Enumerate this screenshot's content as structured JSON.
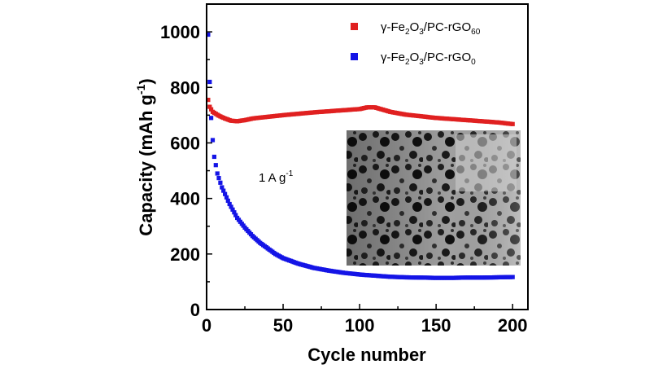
{
  "chart_data": {
    "type": "scatter",
    "xlabel": "Cycle number",
    "ylabel_main": "Capacity (mAh g",
    "ylabel_sup": "-1",
    "ylabel_tail": ")",
    "xlim": [
      0,
      210
    ],
    "ylim": [
      0,
      1100
    ],
    "xticks": [
      0,
      50,
      100,
      150,
      200
    ],
    "yticks": [
      0,
      200,
      400,
      600,
      800,
      1000
    ],
    "grid": false,
    "legend_position": "top-right",
    "annotation": {
      "main": "1 A g",
      "sup": "-1"
    },
    "inset": "TEM micrograph",
    "series": [
      {
        "name": "γ-Fe2O3/PC-rGO60",
        "legend": {
          "base": "γ-Fe",
          "s1": "2",
          "m1": "O",
          "s2": "3",
          "m2": "/PC-rGO",
          "s3": "60"
        },
        "color": "#e02020",
        "points": [
          [
            1,
            755
          ],
          [
            2,
            730
          ],
          [
            4,
            712
          ],
          [
            8,
            698
          ],
          [
            12,
            688
          ],
          [
            16,
            680
          ],
          [
            20,
            678
          ],
          [
            25,
            682
          ],
          [
            30,
            688
          ],
          [
            40,
            694
          ],
          [
            50,
            700
          ],
          [
            60,
            705
          ],
          [
            70,
            710
          ],
          [
            80,
            714
          ],
          [
            90,
            718
          ],
          [
            100,
            722
          ],
          [
            105,
            728
          ],
          [
            110,
            728
          ],
          [
            115,
            720
          ],
          [
            120,
            712
          ],
          [
            130,
            702
          ],
          [
            140,
            696
          ],
          [
            150,
            690
          ],
          [
            160,
            686
          ],
          [
            170,
            682
          ],
          [
            180,
            678
          ],
          [
            190,
            674
          ],
          [
            200,
            668
          ]
        ]
      },
      {
        "name": "γ-Fe2O3/PC-rGO0",
        "legend": {
          "base": "γ-Fe",
          "s1": "2",
          "m1": "O",
          "s2": "3",
          "m2": "/PC-rGO",
          "s3": "0"
        },
        "color": "#1414e6",
        "points": [
          [
            1,
            990
          ],
          [
            2,
            820
          ],
          [
            3,
            690
          ],
          [
            4,
            610
          ],
          [
            5,
            550
          ],
          [
            7,
            490
          ],
          [
            10,
            440
          ],
          [
            15,
            380
          ],
          [
            20,
            330
          ],
          [
            25,
            295
          ],
          [
            30,
            265
          ],
          [
            35,
            240
          ],
          [
            40,
            220
          ],
          [
            45,
            200
          ],
          [
            50,
            185
          ],
          [
            60,
            165
          ],
          [
            70,
            150
          ],
          [
            80,
            140
          ],
          [
            90,
            132
          ],
          [
            100,
            126
          ],
          [
            110,
            122
          ],
          [
            120,
            118
          ],
          [
            130,
            116
          ],
          [
            140,
            115
          ],
          [
            150,
            114
          ],
          [
            160,
            114
          ],
          [
            170,
            115
          ],
          [
            180,
            115
          ],
          [
            190,
            116
          ],
          [
            200,
            117
          ]
        ]
      }
    ]
  }
}
